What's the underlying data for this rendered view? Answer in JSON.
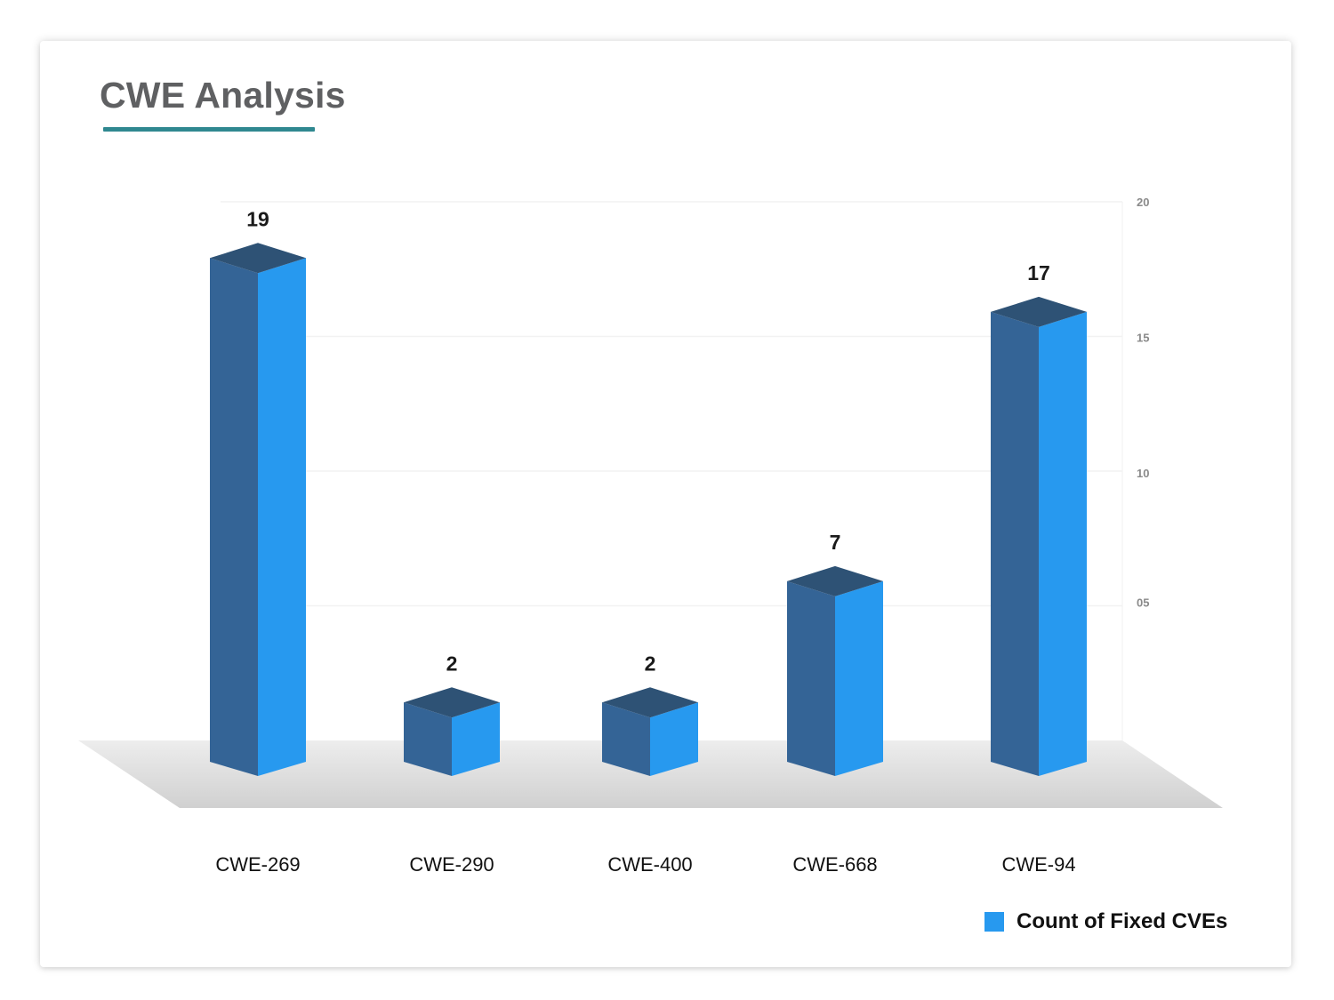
{
  "chart_data": {
    "type": "bar",
    "title": "CWE Analysis",
    "categories": [
      "CWE-269",
      "CWE-290",
      "CWE-400",
      "CWE-668",
      "CWE-94"
    ],
    "series": [
      {
        "name": "Count of Fixed CVEs",
        "values": [
          19,
          2,
          2,
          7,
          17
        ]
      }
    ],
    "data_labels": [
      "19",
      "2",
      "2",
      "7",
      "17"
    ],
    "y_axis": {
      "position": "right",
      "ticks": [
        5,
        10,
        15,
        20
      ],
      "tick_labels": [
        "05",
        "10",
        "15",
        "20"
      ]
    },
    "ylim": [
      0,
      20
    ],
    "legend": "bottom-right",
    "grid": true,
    "style": "3d-columns",
    "colors": {
      "bar_front": "#2799ef",
      "bar_side": "#346496",
      "bar_top": "#2e5275",
      "floor_light": "#ececec",
      "floor_dark": "#d2d2d2",
      "title_underline": "#2f8890"
    }
  }
}
